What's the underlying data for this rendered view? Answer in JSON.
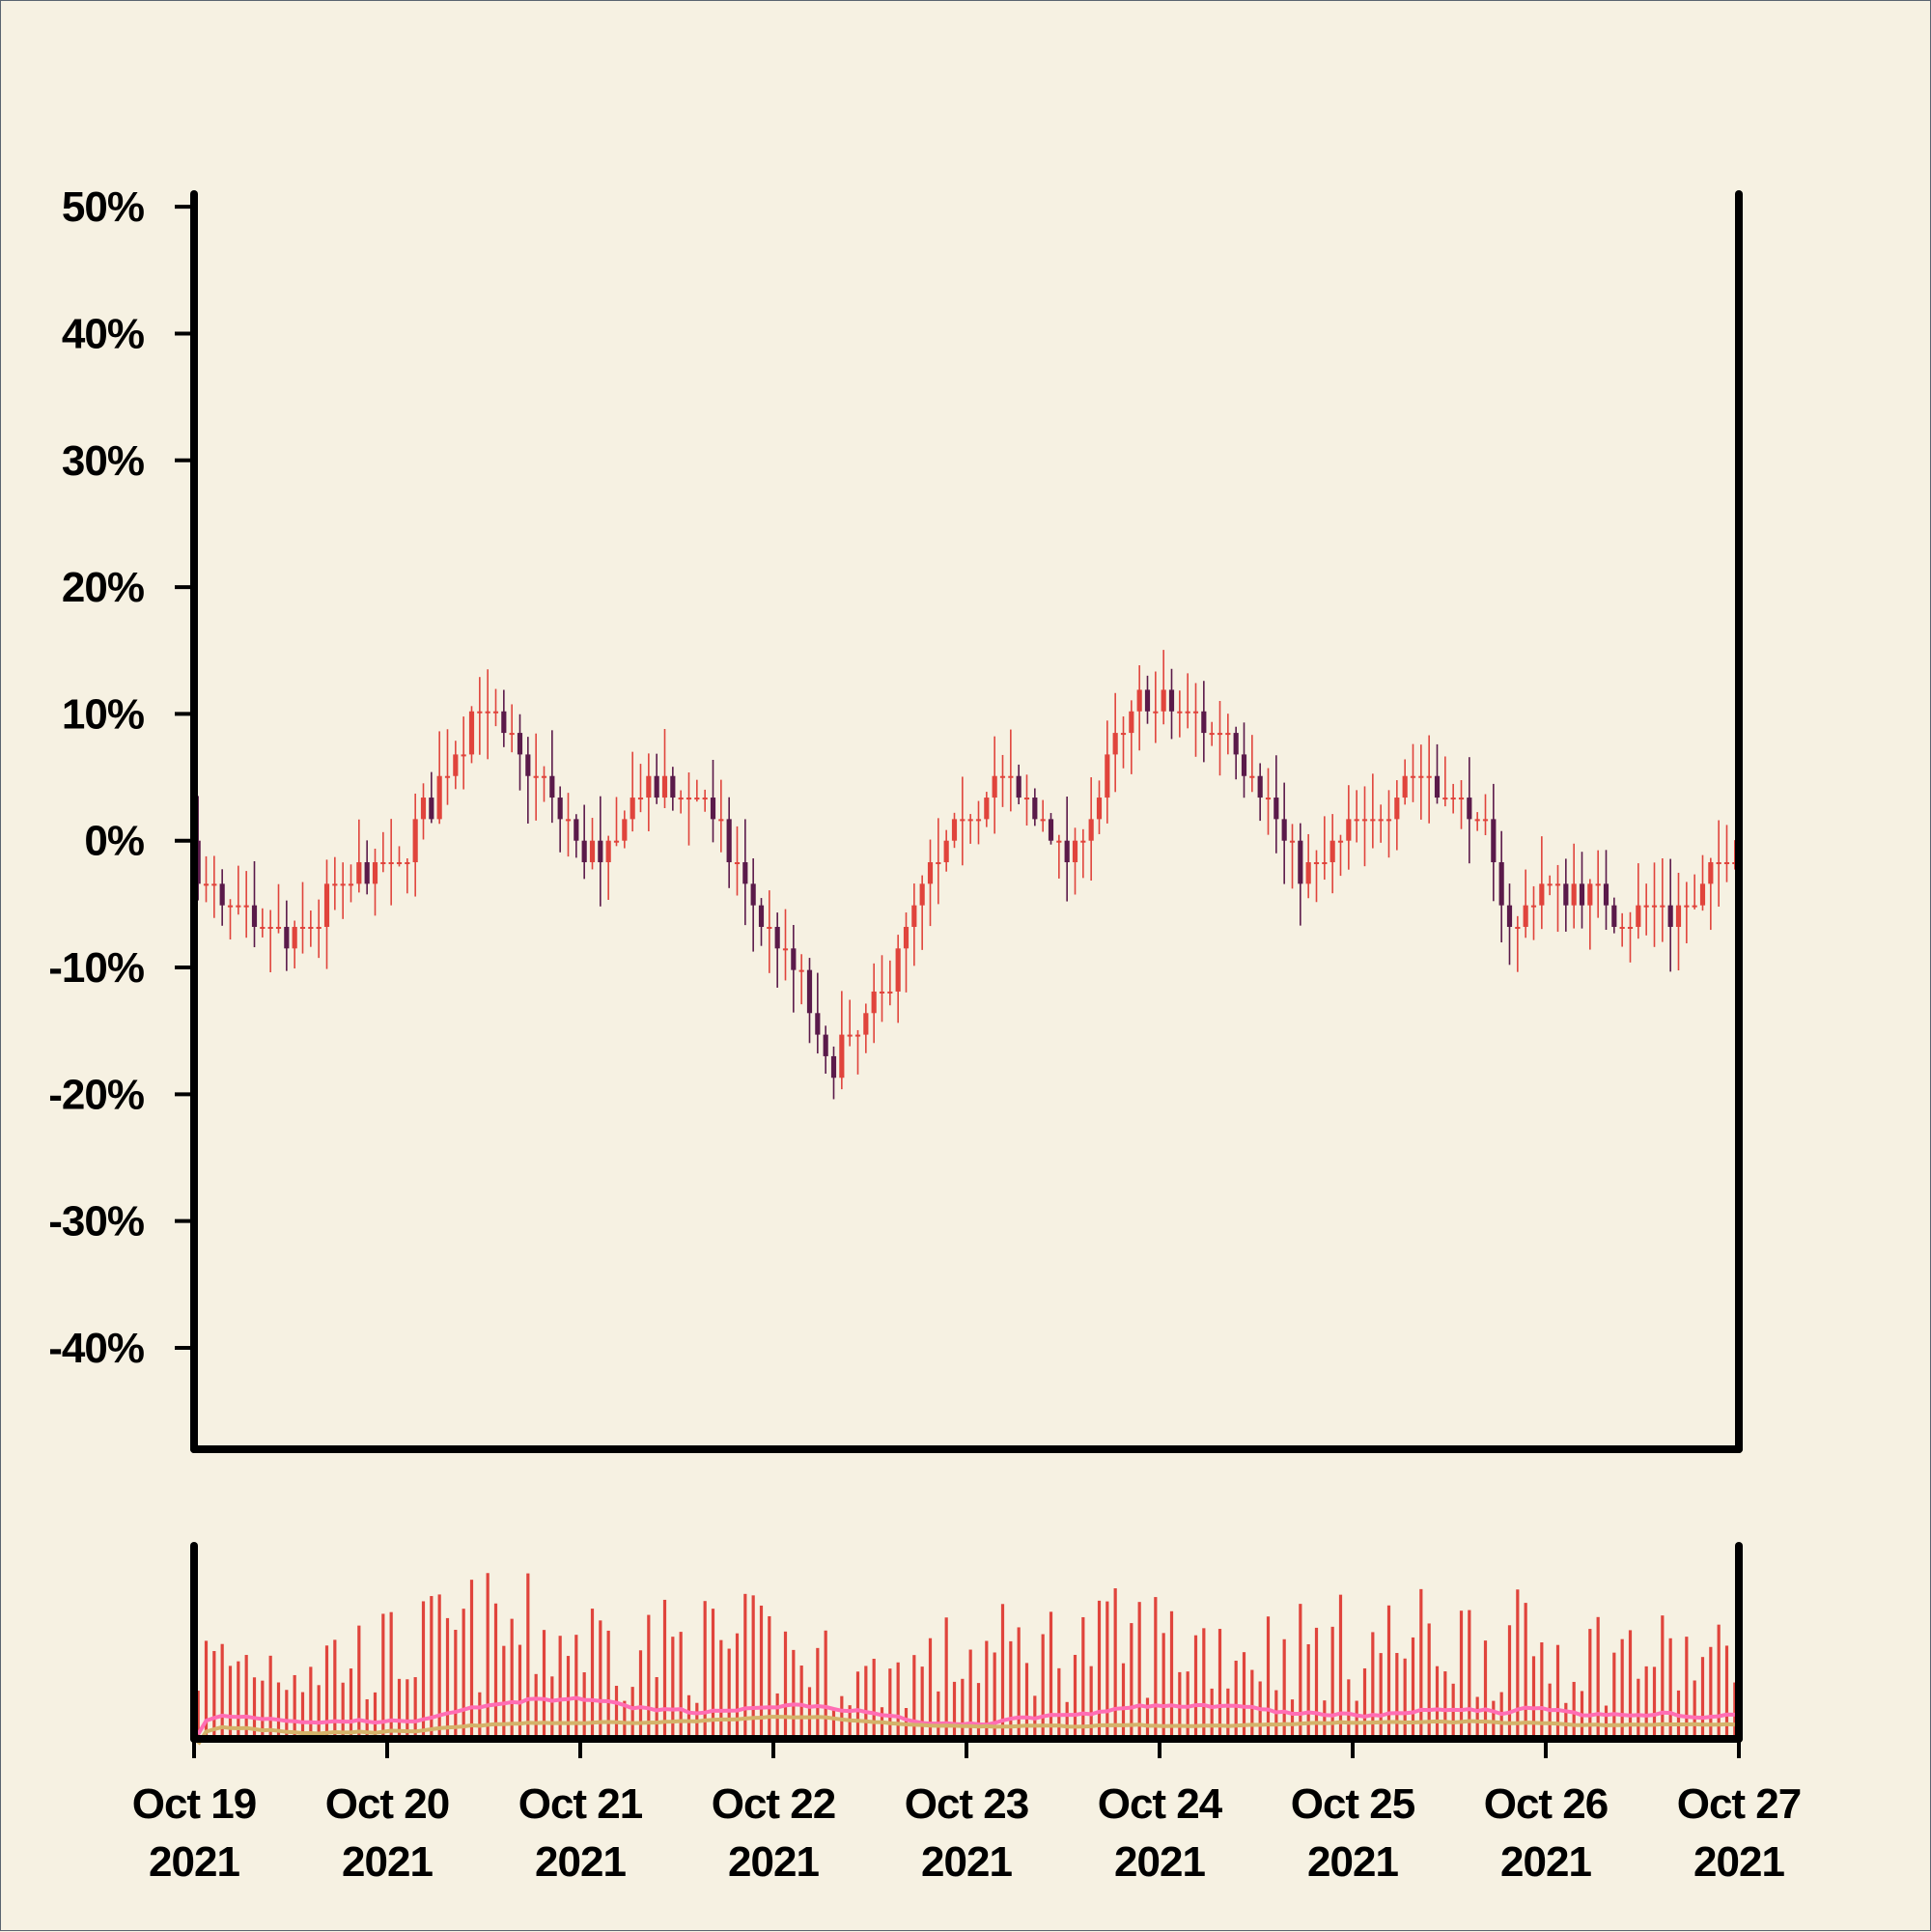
{
  "chart_data": {
    "type": "candlestick",
    "x_axis": {
      "range": [
        "2021-10-19",
        "2021-10-27"
      ],
      "ticks": [
        {
          "line1": "Oct 19",
          "line2": "2021"
        },
        {
          "line1": "Oct 20",
          "line2": "2021"
        },
        {
          "line1": "Oct 21",
          "line2": "2021"
        },
        {
          "line1": "Oct 22",
          "line2": "2021"
        },
        {
          "line1": "Oct 23",
          "line2": "2021"
        },
        {
          "line1": "Oct 24",
          "line2": "2021"
        },
        {
          "line1": "Oct 25",
          "line2": "2021"
        },
        {
          "line1": "Oct 26",
          "line2": "2021"
        },
        {
          "line1": "Oct 27",
          "line2": "2021"
        }
      ]
    },
    "y_axis": {
      "unit": "percent change",
      "range": [
        -48,
        51
      ],
      "ticks": [
        "50%",
        "40%",
        "30%",
        "20%",
        "10%",
        "0%",
        "-10%",
        "-20%",
        "-30%",
        "-40%"
      ],
      "tick_values": [
        50,
        40,
        30,
        20,
        10,
        0,
        -10,
        -20,
        -30,
        -40
      ]
    },
    "colors": {
      "up": "#e0443c",
      "down": "#5a1a4a",
      "volume": "#e0443c",
      "volume_ma_fast": "#ff6eb4",
      "volume_ma_slow": "#d4b36a",
      "background": "#f6f1e2",
      "axis": "#000000"
    },
    "legend": "none",
    "grid": false,
    "candles_per_day": 24,
    "price_path": [
      {
        "day": 0.0,
        "value": 0
      },
      {
        "day": 0.1,
        "value": -4
      },
      {
        "day": 0.3,
        "value": -7
      },
      {
        "day": 0.55,
        "value": -8
      },
      {
        "day": 0.75,
        "value": -4
      },
      {
        "day": 0.95,
        "value": -2
      },
      {
        "day": 1.1,
        "value": -2
      },
      {
        "day": 1.3,
        "value": 5
      },
      {
        "day": 1.5,
        "value": 11
      },
      {
        "day": 1.75,
        "value": 6
      },
      {
        "day": 2.0,
        "value": 0
      },
      {
        "day": 2.15,
        "value": -2
      },
      {
        "day": 2.3,
        "value": 4
      },
      {
        "day": 2.65,
        "value": 4
      },
      {
        "day": 2.9,
        "value": -5
      },
      {
        "day": 3.15,
        "value": -10
      },
      {
        "day": 3.3,
        "value": -18
      },
      {
        "day": 3.55,
        "value": -13
      },
      {
        "day": 3.8,
        "value": -4
      },
      {
        "day": 4.0,
        "value": 1
      },
      {
        "day": 4.15,
        "value": 5
      },
      {
        "day": 4.35,
        "value": 3
      },
      {
        "day": 4.55,
        "value": -2
      },
      {
        "day": 4.75,
        "value": 6
      },
      {
        "day": 4.9,
        "value": 11
      },
      {
        "day": 5.2,
        "value": 10
      },
      {
        "day": 5.45,
        "value": 7
      },
      {
        "day": 5.6,
        "value": 2
      },
      {
        "day": 5.8,
        "value": -3
      },
      {
        "day": 6.0,
        "value": 1
      },
      {
        "day": 6.15,
        "value": 2
      },
      {
        "day": 6.35,
        "value": 6
      },
      {
        "day": 6.55,
        "value": 3
      },
      {
        "day": 6.7,
        "value": 1
      },
      {
        "day": 6.85,
        "value": -8
      },
      {
        "day": 7.0,
        "value": -3
      },
      {
        "day": 7.2,
        "value": -4
      },
      {
        "day": 7.5,
        "value": -6
      },
      {
        "day": 7.8,
        "value": -5
      },
      {
        "day": 8.0,
        "value": 0
      }
    ],
    "volume_activity": [
      {
        "day": 0.0,
        "level": 0.45
      },
      {
        "day": 1.0,
        "level": 0.5
      },
      {
        "day": 1.5,
        "level": 0.65
      },
      {
        "day": 2.0,
        "level": 0.6
      },
      {
        "day": 2.5,
        "level": 0.55
      },
      {
        "day": 3.0,
        "level": 0.55
      },
      {
        "day": 3.5,
        "level": 0.35
      },
      {
        "day": 4.0,
        "level": 0.5
      },
      {
        "day": 4.5,
        "level": 0.55
      },
      {
        "day": 5.0,
        "level": 0.6
      },
      {
        "day": 5.5,
        "level": 0.55
      },
      {
        "day": 6.0,
        "level": 0.55
      },
      {
        "day": 6.5,
        "level": 0.6
      },
      {
        "day": 7.0,
        "level": 0.55
      },
      {
        "day": 7.5,
        "level": 0.5
      },
      {
        "day": 8.0,
        "level": 0.45
      }
    ]
  }
}
